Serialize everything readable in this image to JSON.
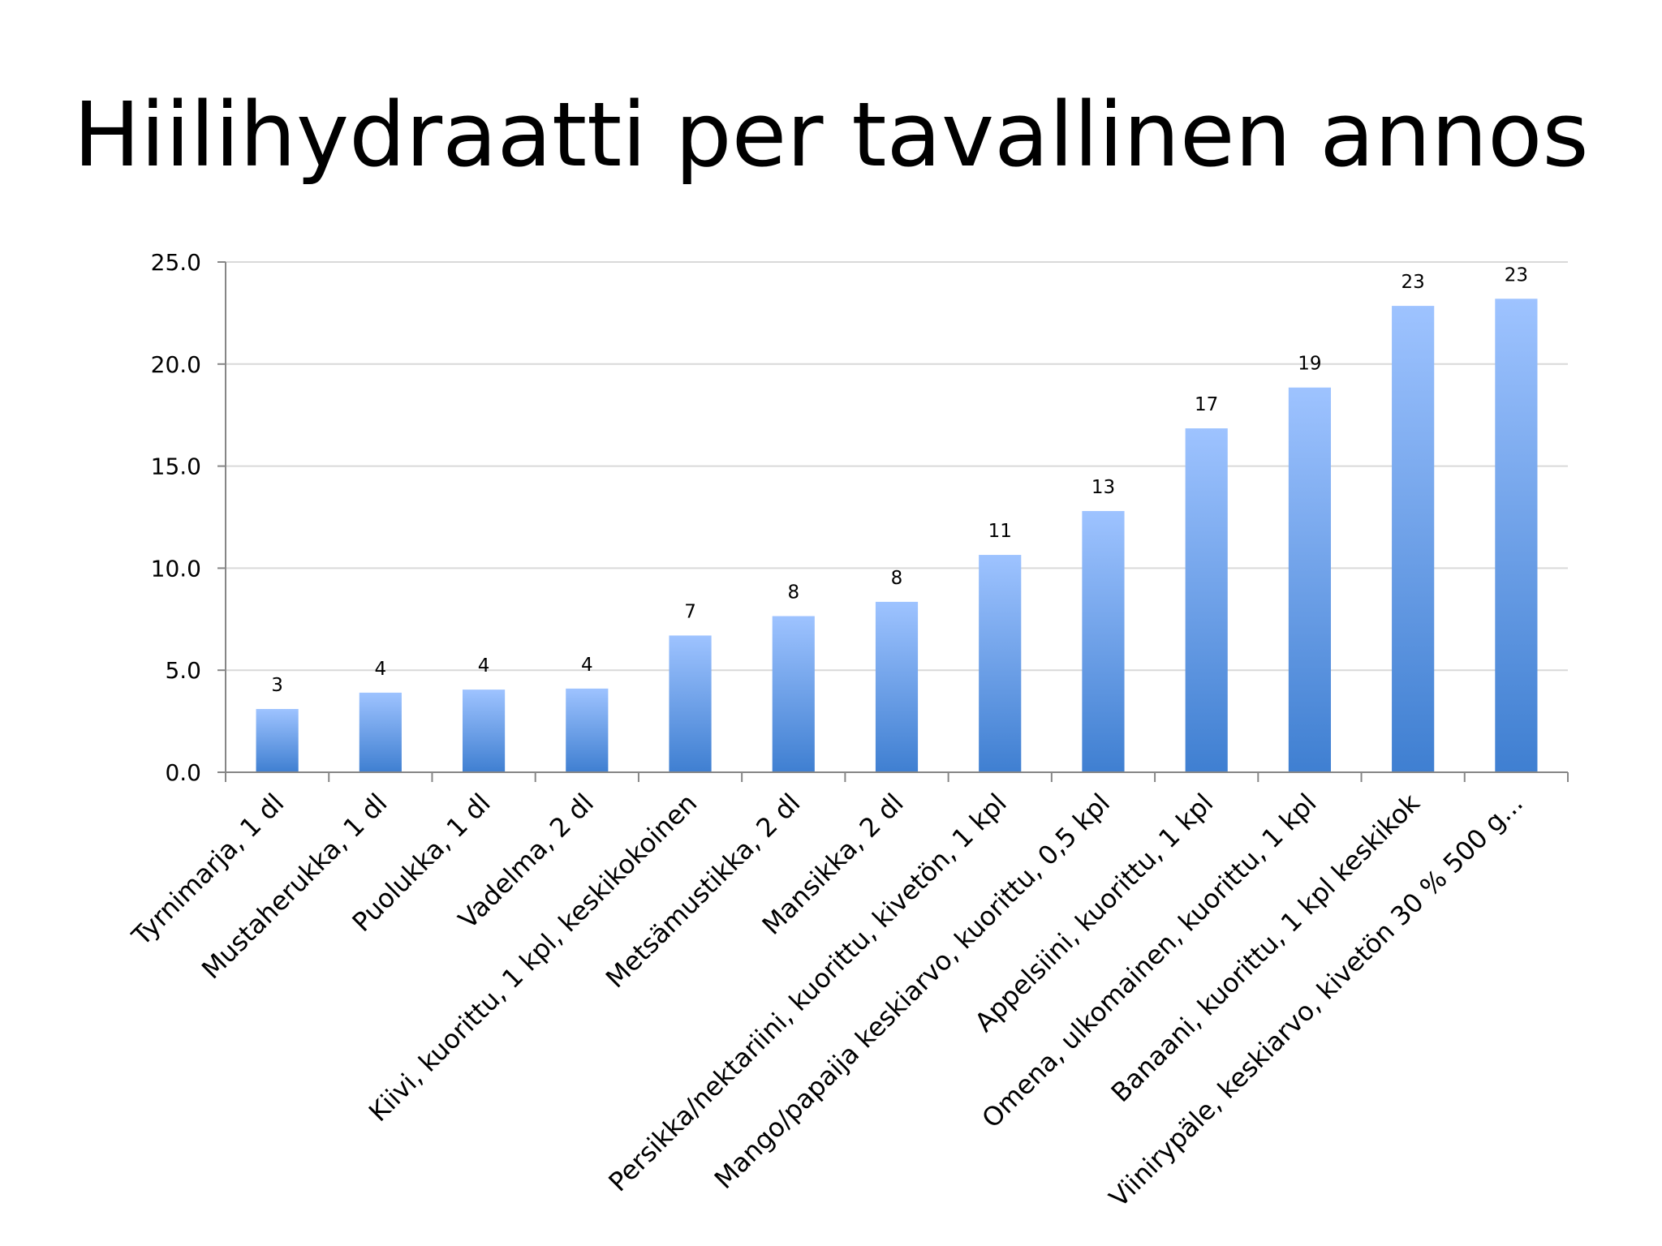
{
  "slide": {
    "title": "Hiilihydraatti per tavallinen annos"
  },
  "colors": {
    "bar_top": "#9ec3ff",
    "bar_bottom": "#3f7fd1",
    "grid": "#d9d9d9",
    "axis": "#868686"
  },
  "chart_data": {
    "type": "bar",
    "title": "",
    "xlabel": "",
    "ylabel": "",
    "ylim": [
      0,
      25
    ],
    "yticks": [
      "0.0",
      "5.0",
      "10.0",
      "15.0",
      "20.0",
      "25.0"
    ],
    "grid": true,
    "legend": "none",
    "categories": [
      "Tyrnimarja, 1 dl",
      "Mustaherukka, 1 dl",
      "Puolukka, 1 dl",
      "Vadelma, 2 dl",
      "Kiivi, kuorittu, 1 kpl, keskikokoinen",
      "Metsämustikka, 2 dl",
      "Mansikka, 2 dl",
      "Persikka/nektariini, kuorittu, kivetön, 1 kpl",
      "Mango/papaija keskiarvo, kuorittu, 0,5 kpl",
      "Appelsiini, kuorittu, 1 kpl",
      "Omena, ulkomainen, kuorittu, 1 kpl",
      "Banaani, kuorittu, 1 kpl keskikok",
      "Viinirypäle, keskiarvo, kivetön  30 % 500 g..."
    ],
    "values": [
      3.1,
      3.9,
      4.05,
      4.1,
      6.7,
      7.65,
      8.35,
      10.65,
      12.8,
      16.85,
      18.85,
      22.85,
      23.2
    ],
    "data_labels": [
      "3",
      "4",
      "4",
      "4",
      "7",
      "8",
      "8",
      "11",
      "13",
      "17",
      "19",
      "23",
      "23"
    ]
  }
}
